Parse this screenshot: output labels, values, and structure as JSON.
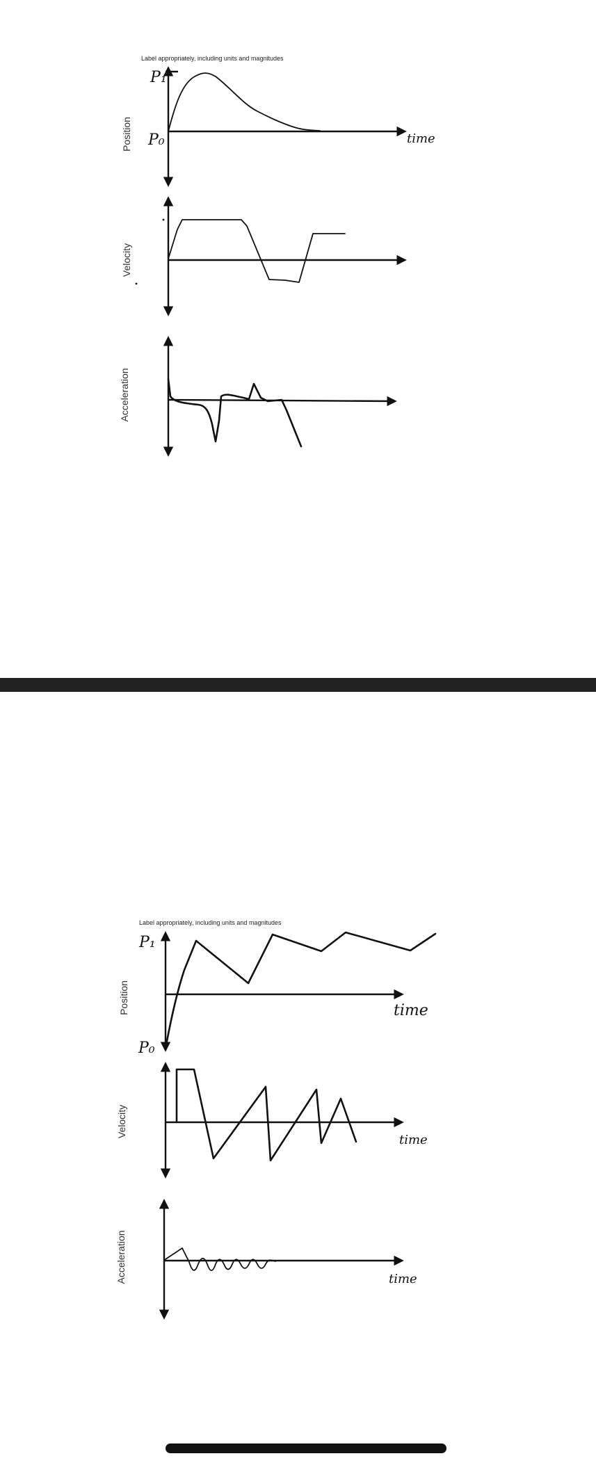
{
  "divider_color": "#222222",
  "ink_color": "#111111",
  "top_sheet": {
    "caption": "Label appropriately, including units and magnitudes",
    "tags": {
      "p1": "P₁",
      "p0": "P₀",
      "time": "time"
    },
    "chart_data": [
      {
        "type": "line",
        "ylabel": "Position",
        "xlabel": "time",
        "series": [
          {
            "values": [
              [
                0,
                0
              ],
              [
                0.06,
                0.55
              ],
              [
                0.1,
                0.84
              ],
              [
                0.15,
                1.0
              ],
              [
                0.2,
                0.9
              ],
              [
                0.3,
                0.6
              ],
              [
                0.4,
                0.4
              ],
              [
                0.48,
                0.2
              ],
              [
                0.55,
                0.05
              ],
              [
                0.6,
                0.02
              ]
            ]
          }
        ]
      },
      {
        "type": "line",
        "ylabel": "Velocity",
        "xlabel": "",
        "series": [
          {
            "values": [
              [
                0,
                0.05
              ],
              [
                0.04,
                0.9
              ],
              [
                0.06,
                0.95
              ],
              [
                0.3,
                0.94
              ],
              [
                0.33,
                0.75
              ],
              [
                0.42,
                -0.4
              ],
              [
                0.55,
                -0.45
              ],
              [
                0.59,
                0.58
              ],
              [
                0.7,
                0.58
              ]
            ]
          }
        ]
      },
      {
        "type": "line",
        "ylabel": "Acceleration",
        "xlabel": "",
        "series": [
          {
            "values": [
              [
                0,
                0.5
              ],
              [
                0.02,
                0.05
              ],
              [
                0.07,
                -0.05
              ],
              [
                0.14,
                -0.1
              ],
              [
                0.19,
                -0.5
              ],
              [
                0.21,
                -0.8
              ],
              [
                0.23,
                -0.05
              ],
              [
                0.25,
                0.1
              ],
              [
                0.32,
                0.05
              ],
              [
                0.35,
                0.45
              ],
              [
                0.4,
                0
              ],
              [
                0.48,
                0
              ],
              [
                0.51,
                -0.6
              ],
              [
                0.57,
                -0.85
              ]
            ]
          }
        ]
      }
    ]
  },
  "bottom_sheet": {
    "caption": "Label appropriately, including units and magnitudes",
    "tags": {
      "p1": "P₁",
      "p0": "P₀",
      "time1": "time",
      "time2": "time",
      "time3": "time"
    },
    "chart_data": [
      {
        "type": "line",
        "ylabel": "Position",
        "xlabel": "time",
        "series": [
          {
            "values": [
              [
                0,
                -1
              ],
              [
                0.03,
                0.3
              ],
              [
                0.06,
                0.8
              ],
              [
                0.18,
                0.2
              ],
              [
                0.28,
                1.05
              ],
              [
                0.4,
                0.75
              ],
              [
                0.5,
                1.05
              ],
              [
                0.66,
                0.8
              ],
              [
                0.72,
                0.95
              ]
            ]
          }
        ]
      },
      {
        "type": "line",
        "ylabel": "Velocity",
        "xlabel": "time",
        "series": [
          {
            "values": [
              [
                0.03,
                0
              ],
              [
                0.03,
                1
              ],
              [
                0.08,
                1
              ],
              [
                0.13,
                -0.8
              ],
              [
                0.26,
                0.6
              ],
              [
                0.31,
                -0.8
              ],
              [
                0.43,
                0.7
              ],
              [
                0.47,
                -0.4
              ],
              [
                0.52,
                0.5
              ],
              [
                0.55,
                -0.4
              ]
            ]
          }
        ]
      },
      {
        "type": "line",
        "ylabel": "Acceleration",
        "xlabel": "time",
        "series": [
          {
            "values": [
              [
                0,
                0.02
              ],
              [
                0.05,
                0.3
              ],
              [
                0.08,
                -0.05
              ],
              [
                0.1,
                -0.35
              ],
              [
                0.13,
                0
              ],
              [
                0.15,
                -0.25
              ],
              [
                0.18,
                0
              ],
              [
                0.2,
                -0.2
              ],
              [
                0.22,
                0
              ],
              [
                0.24,
                -0.2
              ],
              [
                0.27,
                0
              ],
              [
                0.29,
                -0.15
              ],
              [
                0.31,
                0
              ]
            ]
          }
        ]
      }
    ]
  }
}
